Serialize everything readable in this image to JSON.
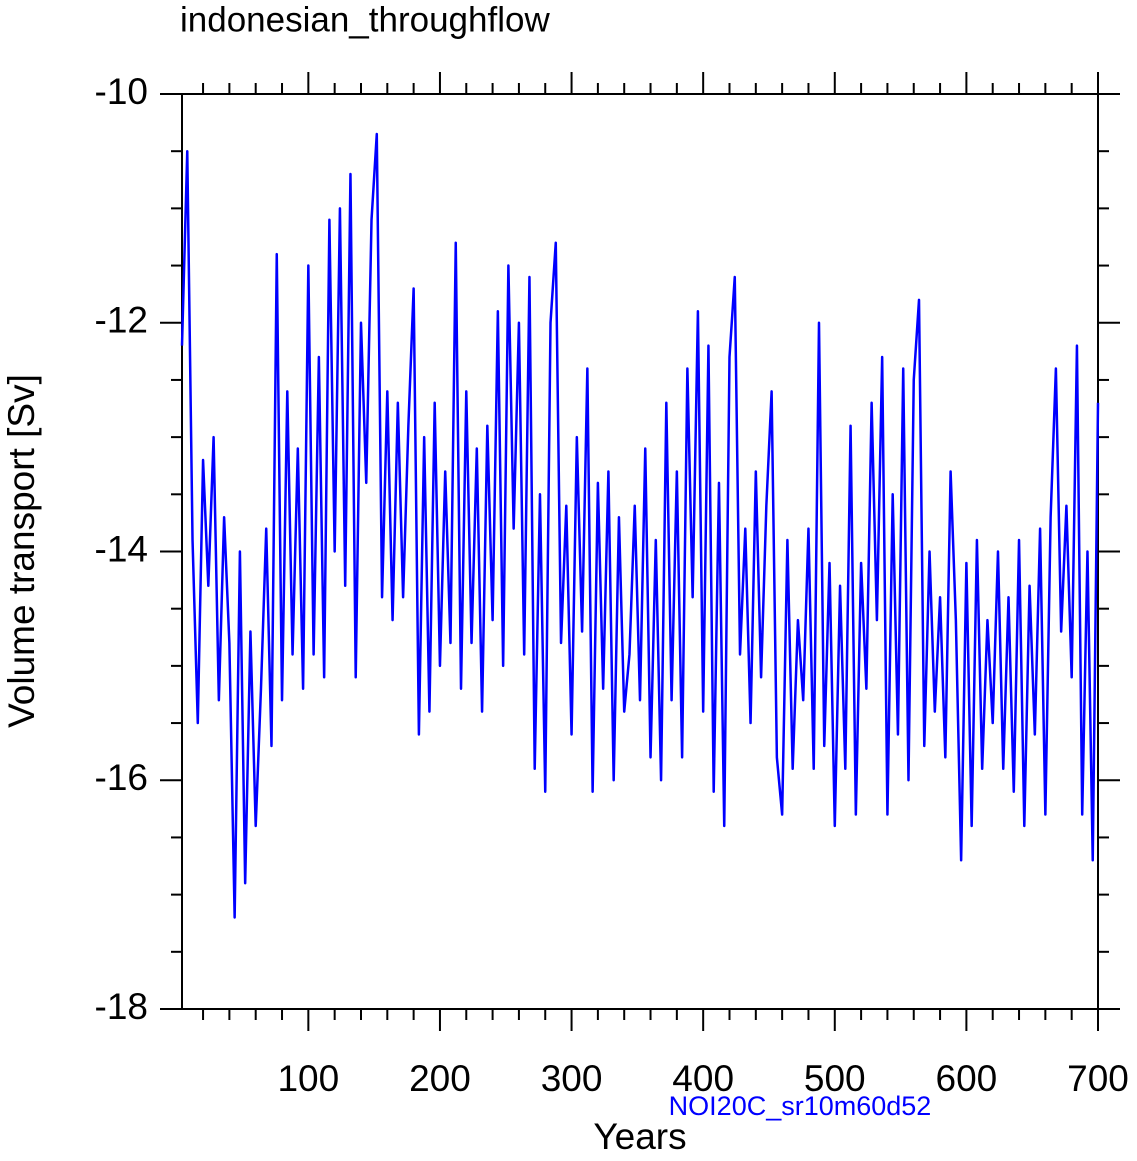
{
  "chart_data": {
    "type": "line",
    "title": "indonesian_throughflow",
    "x_label": "Years",
    "y_label": "Volume transport [Sv]",
    "annotation": "NOI20C_sr10m60d52",
    "xlim": [
      4,
      700
    ],
    "ylim": [
      -18,
      -10
    ],
    "xticks": [
      100,
      200,
      300,
      400,
      500,
      600,
      700
    ],
    "yticks": [
      -18,
      -16,
      -14,
      -12,
      -10
    ],
    "xminorticks": [
      20,
      40,
      60,
      80,
      120,
      140,
      160,
      180,
      220,
      240,
      260,
      280,
      320,
      340,
      360,
      380,
      420,
      440,
      460,
      480,
      520,
      540,
      560,
      580,
      620,
      640,
      660,
      680
    ],
    "yminorticks": [
      -17.5,
      -17,
      -16.5,
      -15.5,
      -15,
      -14.5,
      -13.5,
      -13,
      -12.5,
      -11.5,
      -11,
      -10.5
    ],
    "grid": false,
    "series": [
      {
        "color": "#0000ff",
        "x": [
          4,
          8,
          12,
          16,
          20,
          24,
          28,
          32,
          36,
          40,
          44,
          48,
          52,
          56,
          60,
          64,
          68,
          72,
          76,
          80,
          84,
          88,
          92,
          96,
          100,
          104,
          108,
          112,
          116,
          120,
          124,
          128,
          132,
          136,
          140,
          144,
          148,
          152,
          156,
          160,
          164,
          168,
          172,
          176,
          180,
          184,
          188,
          192,
          196,
          200,
          204,
          208,
          212,
          216,
          220,
          224,
          228,
          232,
          236,
          240,
          244,
          248,
          252,
          256,
          260,
          264,
          268,
          272,
          276,
          280,
          284,
          288,
          292,
          296,
          300,
          304,
          308,
          312,
          316,
          320,
          324,
          328,
          332,
          336,
          340,
          344,
          348,
          352,
          356,
          360,
          364,
          368,
          372,
          376,
          380,
          384,
          388,
          392,
          396,
          400,
          404,
          408,
          412,
          416,
          420,
          424,
          428,
          432,
          436,
          440,
          444,
          448,
          452,
          456,
          460,
          464,
          468,
          472,
          476,
          480,
          484,
          488,
          492,
          496,
          500,
          504,
          508,
          512,
          516,
          520,
          524,
          528,
          532,
          536,
          540,
          544,
          548,
          552,
          556,
          560,
          564,
          568,
          572,
          576,
          580,
          584,
          588,
          592,
          596,
          600,
          604,
          608,
          612,
          616,
          620,
          624,
          628,
          632,
          636,
          640,
          644,
          648,
          652,
          656,
          660,
          664,
          668,
          672,
          676,
          680,
          684,
          688,
          692,
          696,
          700
        ],
        "values": [
          -12.2,
          -10.5,
          -13.9,
          -15.5,
          -13.2,
          -14.3,
          -13.0,
          -15.3,
          -13.7,
          -14.8,
          -17.2,
          -14.0,
          -16.9,
          -14.7,
          -16.4,
          -15.2,
          -13.8,
          -15.7,
          -11.4,
          -15.3,
          -12.6,
          -14.9,
          -13.1,
          -15.2,
          -11.5,
          -14.9,
          -12.3,
          -15.1,
          -11.1,
          -14.0,
          -11.0,
          -14.3,
          -10.7,
          -15.1,
          -12.0,
          -13.4,
          -11.1,
          -10.35,
          -14.4,
          -12.6,
          -14.6,
          -12.7,
          -14.4,
          -12.9,
          -11.7,
          -15.6,
          -13.0,
          -15.4,
          -12.7,
          -15.0,
          -13.3,
          -14.8,
          -11.3,
          -15.2,
          -12.6,
          -14.8,
          -13.1,
          -15.4,
          -12.9,
          -14.6,
          -11.9,
          -15.0,
          -11.5,
          -13.8,
          -12.0,
          -14.9,
          -11.6,
          -15.9,
          -13.5,
          -16.1,
          -12.0,
          -11.3,
          -14.8,
          -13.6,
          -15.6,
          -13.0,
          -14.7,
          -12.4,
          -16.1,
          -13.4,
          -15.2,
          -13.3,
          -16.0,
          -13.7,
          -15.4,
          -14.9,
          -13.6,
          -15.3,
          -13.1,
          -15.8,
          -13.9,
          -16.0,
          -12.7,
          -15.3,
          -13.3,
          -15.8,
          -12.4,
          -14.4,
          -11.9,
          -15.4,
          -12.2,
          -16.1,
          -13.4,
          -16.4,
          -12.3,
          -11.6,
          -14.9,
          -13.8,
          -15.5,
          -13.3,
          -15.1,
          -13.6,
          -12.6,
          -15.8,
          -16.3,
          -13.9,
          -15.9,
          -14.6,
          -15.3,
          -13.8,
          -15.9,
          -12.0,
          -15.7,
          -14.1,
          -16.4,
          -14.3,
          -15.9,
          -12.9,
          -16.3,
          -14.1,
          -15.2,
          -12.7,
          -14.6,
          -12.3,
          -16.3,
          -13.5,
          -15.6,
          -12.4,
          -16.0,
          -12.5,
          -11.8,
          -15.7,
          -14.0,
          -15.4,
          -14.4,
          -15.8,
          -13.3,
          -14.6,
          -16.7,
          -14.1,
          -16.4,
          -13.9,
          -15.9,
          -14.6,
          -15.5,
          -14.0,
          -15.9,
          -14.4,
          -16.1,
          -13.9,
          -16.4,
          -14.3,
          -15.6,
          -13.8,
          -16.3,
          -13.7,
          -12.4,
          -14.7,
          -13.6,
          -15.1,
          -12.2,
          -16.3,
          -14.0,
          -16.7,
          -12.7
        ]
      }
    ]
  }
}
